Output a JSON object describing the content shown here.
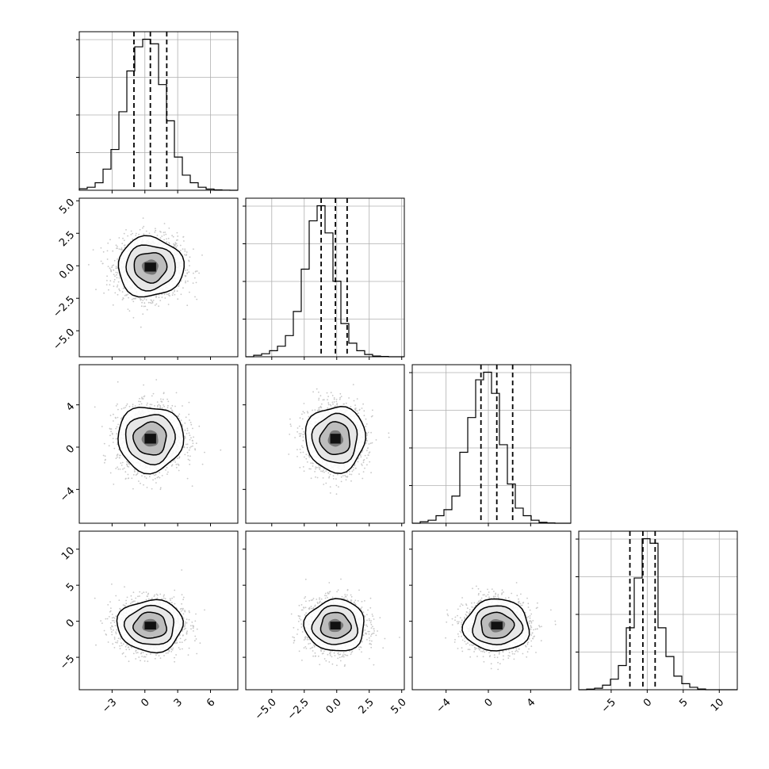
{
  "chart_data": {
    "type": "corner",
    "background": "#ffffff",
    "line_color": "#000000",
    "grid_color": "#b0b0b0",
    "quantile_line": "dashed",
    "parameters": [
      {
        "range": [
          -6.0,
          8.5
        ],
        "ticks": [
          -3,
          0,
          3,
          6
        ],
        "tick_labels": [
          "−3",
          "0",
          "3",
          "6"
        ],
        "mean": 0.5,
        "sd": 1.5,
        "quantiles": [
          -1.0,
          0.5,
          2.0
        ]
      },
      {
        "range": [
          -7.0,
          5.2
        ],
        "ticks": [
          -5.0,
          -2.5,
          0.0,
          2.5,
          5.0
        ],
        "tick_labels": [
          "−5.0",
          "−2.5",
          "0.0",
          "2.5",
          "5.0"
        ],
        "mean": -0.1,
        "sd": 1.15,
        "quantiles": [
          -1.2,
          -0.1,
          0.8
        ]
      },
      {
        "range": [
          -7.2,
          7.8
        ],
        "ticks": [
          -4,
          0,
          4
        ],
        "tick_labels": [
          "−4",
          "0",
          "4"
        ],
        "mean": 0.8,
        "sd": 1.55,
        "quantiles": [
          -0.7,
          0.8,
          2.3
        ]
      },
      {
        "range": [
          -9.5,
          12.5
        ],
        "ticks": [
          -5,
          0,
          5,
          10
        ],
        "tick_labels": [
          "−5",
          "0",
          "5",
          "10"
        ],
        "mean": -0.6,
        "sd": 1.8,
        "quantiles": [
          -2.4,
          -0.6,
          1.1
        ]
      }
    ],
    "histograms": [
      {
        "param": 0,
        "bins": 20,
        "rel_counts": [
          0.01,
          0.02,
          0.05,
          0.14,
          0.27,
          0.52,
          0.79,
          0.95,
          1.0,
          0.97,
          0.7,
          0.46,
          0.22,
          0.1,
          0.05,
          0.02,
          0.008,
          0.003,
          0.001,
          0.0
        ]
      },
      {
        "param": 1,
        "bins": 20,
        "rel_counts": [
          0.0,
          0.01,
          0.02,
          0.04,
          0.07,
          0.14,
          0.3,
          0.58,
          0.9,
          1.0,
          0.82,
          0.5,
          0.22,
          0.09,
          0.04,
          0.015,
          0.005,
          0.002,
          0.0,
          0.0
        ]
      },
      {
        "param": 2,
        "bins": 20,
        "rel_counts": [
          0.0,
          0.01,
          0.02,
          0.05,
          0.09,
          0.18,
          0.47,
          0.7,
          0.95,
          1.0,
          0.86,
          0.52,
          0.26,
          0.1,
          0.05,
          0.02,
          0.006,
          0.002,
          0.0,
          0.0
        ]
      },
      {
        "param": 3,
        "bins": 20,
        "rel_counts": [
          0.0,
          0.004,
          0.01,
          0.03,
          0.07,
          0.16,
          0.41,
          0.74,
          1.0,
          0.97,
          0.41,
          0.22,
          0.09,
          0.04,
          0.016,
          0.005,
          0.0,
          0.0,
          0.0,
          0.0
        ]
      }
    ],
    "scatter_panels": [
      {
        "x_param": 0,
        "y_param": 1,
        "correlation": 0.0
      },
      {
        "x_param": 0,
        "y_param": 2,
        "correlation": 0.05
      },
      {
        "x_param": 1,
        "y_param": 2,
        "correlation": 0.0
      },
      {
        "x_param": 0,
        "y_param": 3,
        "correlation": 0.0
      },
      {
        "x_param": 1,
        "y_param": 3,
        "correlation": 0.0
      },
      {
        "x_param": 2,
        "y_param": 3,
        "correlation": 0.0
      }
    ],
    "contour_levels_sigma": [
      0.5,
      1.0,
      1.5,
      2.0
    ],
    "samples_per_panel": 1800
  }
}
